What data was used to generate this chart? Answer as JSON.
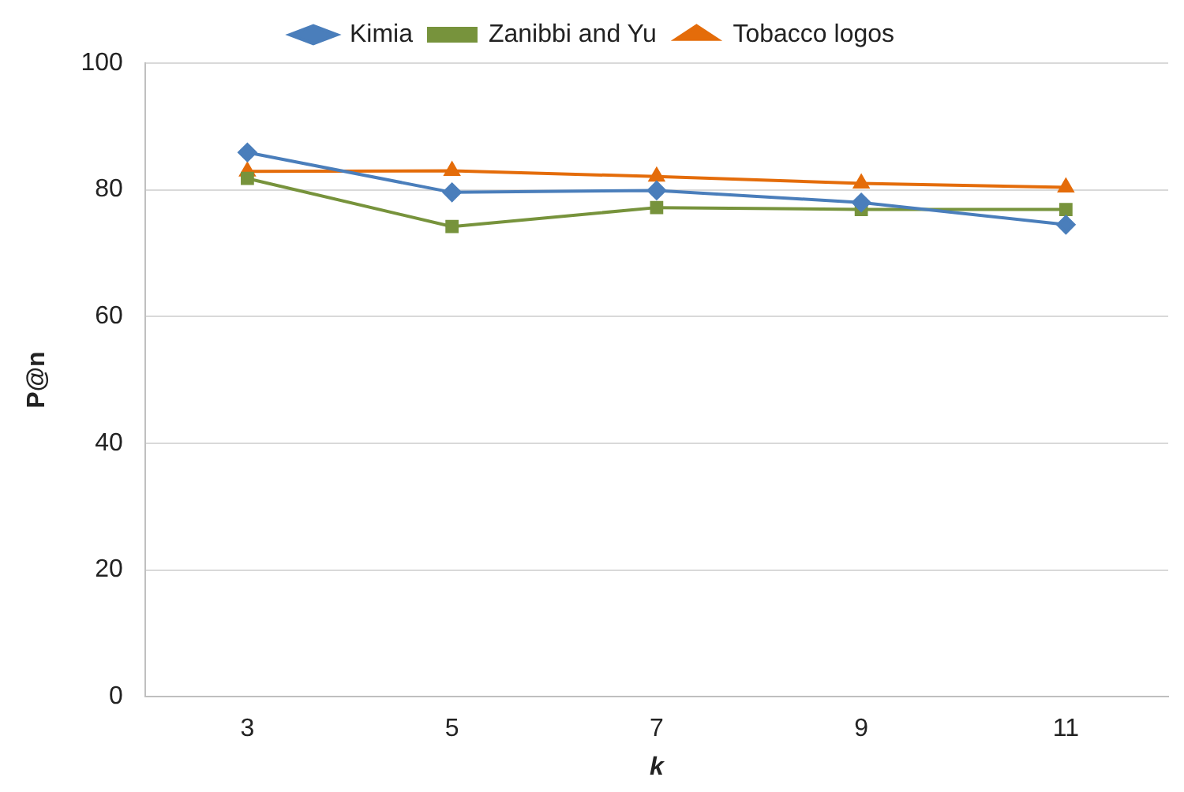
{
  "chart_data": {
    "type": "line",
    "xlabel": "k",
    "ylabel": "P@n",
    "categories": [
      "3",
      "5",
      "7",
      "9",
      "11"
    ],
    "series": [
      {
        "name": "Kimia",
        "color": "#4a7ebb",
        "marker": "diamond",
        "values": [
          85.9,
          79.6,
          79.9,
          78.0,
          74.5
        ]
      },
      {
        "name": "Zanibbi and Yu",
        "color": "#77933c",
        "marker": "square",
        "values": [
          81.8,
          74.2,
          77.2,
          76.9,
          76.9
        ]
      },
      {
        "name": "Tobacco logos",
        "color": "#e46c0a",
        "marker": "triangle",
        "values": [
          82.9,
          83.0,
          82.1,
          81.0,
          80.4
        ]
      }
    ],
    "ylim": [
      0,
      100
    ],
    "yticks": [
      0,
      20,
      40,
      60,
      80,
      100
    ],
    "grid": "y",
    "legend": "top",
    "line_style": "solid"
  }
}
